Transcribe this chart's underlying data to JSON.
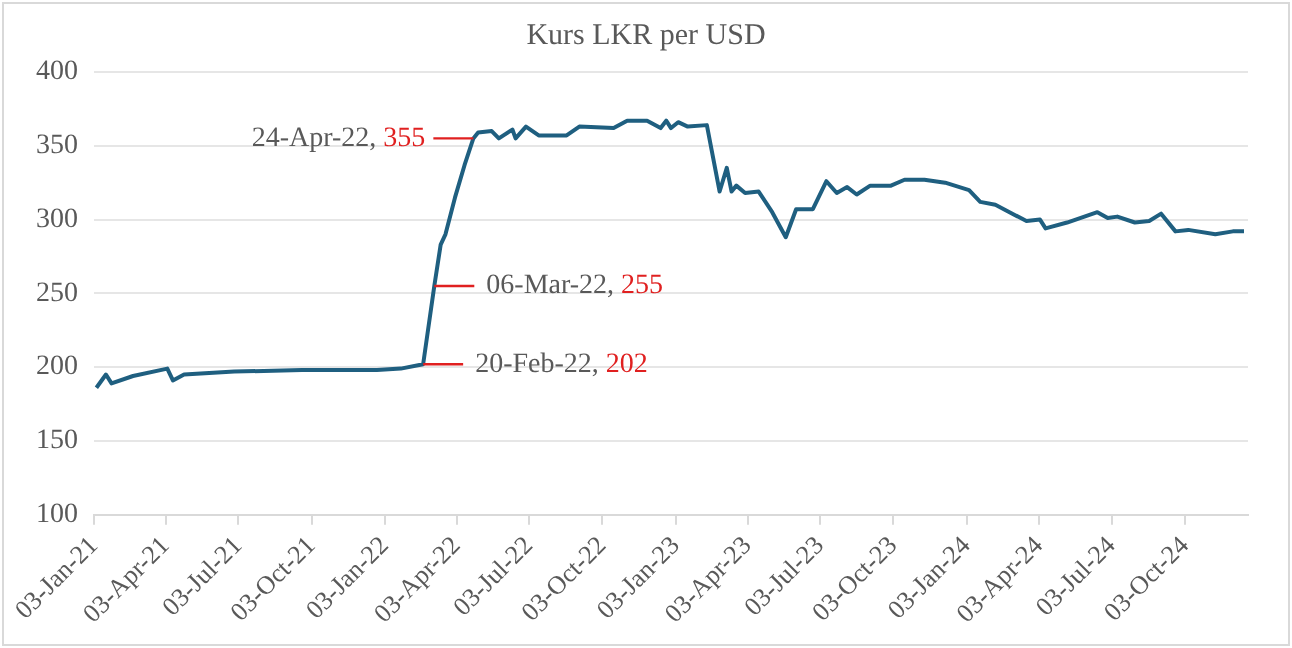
{
  "chart_data": {
    "type": "line",
    "title": "Kurs LKR per USD",
    "color": "#1f5f80",
    "grid": "y",
    "legend": false,
    "marker": "none",
    "line_style": "solid",
    "x": [
      "2021-01-06",
      "2021-01-18",
      "2021-01-25",
      "2021-02-21",
      "2021-04-05",
      "2021-04-12",
      "2021-04-26",
      "2021-06-28",
      "2021-09-21",
      "2021-12-24",
      "2022-01-23",
      "2022-02-20",
      "2022-03-06",
      "2022-03-14",
      "2022-03-20",
      "2022-04-01",
      "2022-04-13",
      "2022-04-24",
      "2022-04-30",
      "2022-05-17",
      "2022-05-26",
      "2022-06-12",
      "2022-06-16",
      "2022-06-29",
      "2022-07-15",
      "2022-08-19",
      "2022-09-04",
      "2022-10-17",
      "2022-11-03",
      "2022-11-28",
      "2022-12-15",
      "2022-12-22",
      "2022-12-28",
      "2023-01-06",
      "2023-01-18",
      "2023-02-11",
      "2023-02-17",
      "2023-02-27",
      "2023-03-08",
      "2023-03-14",
      "2023-03-20",
      "2023-03-31",
      "2023-04-17",
      "2023-05-04",
      "2023-05-21",
      "2023-06-03",
      "2023-06-24",
      "2023-07-11",
      "2023-07-24",
      "2023-08-06",
      "2023-08-18",
      "2023-09-04",
      "2023-09-30",
      "2023-10-17",
      "2023-11-11",
      "2023-12-07",
      "2024-01-06",
      "2024-01-20",
      "2024-02-08",
      "2024-03-18",
      "2024-04-04",
      "2024-04-11",
      "2024-05-08",
      "2024-06-15",
      "2024-06-28",
      "2024-07-10",
      "2024-08-01",
      "2024-08-19",
      "2024-09-03",
      "2024-09-21",
      "2024-10-07",
      "2024-11-10",
      "2024-12-02",
      "2024-12-16"
    ],
    "values": [
      186,
      195,
      189,
      194,
      199,
      191,
      195,
      197,
      198,
      198,
      199,
      202,
      255,
      283,
      290,
      315,
      337,
      355,
      359,
      360,
      355,
      361,
      355,
      363,
      357,
      357,
      363,
      362,
      367,
      367,
      362,
      367,
      362,
      366,
      363,
      364,
      347,
      319,
      335,
      319,
      323,
      318,
      319,
      305,
      288,
      307,
      307,
      326,
      318,
      322,
      317,
      323,
      323,
      327,
      327,
      325,
      320,
      312,
      310,
      299,
      300,
      294,
      298,
      305,
      301,
      302,
      298,
      299,
      304,
      292,
      293,
      290,
      292,
      292
    ],
    "xlim": [
      "2021-01-03",
      "2024-12-21"
    ],
    "xticks": [
      {
        "value": "2021-01-03",
        "label": "03-Jan-21"
      },
      {
        "value": "2021-04-03",
        "label": "03-Apr-21"
      },
      {
        "value": "2021-07-03",
        "label": "03-Jul-21"
      },
      {
        "value": "2021-10-03",
        "label": "03-Oct-21"
      },
      {
        "value": "2022-01-03",
        "label": "03-Jan-22"
      },
      {
        "value": "2022-04-03",
        "label": "03-Apr-22"
      },
      {
        "value": "2022-07-03",
        "label": "03-Jul-22"
      },
      {
        "value": "2022-10-03",
        "label": "03-Oct-22"
      },
      {
        "value": "2023-01-03",
        "label": "03-Jan-23"
      },
      {
        "value": "2023-04-03",
        "label": "03-Apr-23"
      },
      {
        "value": "2023-07-03",
        "label": "03-Jul-23"
      },
      {
        "value": "2023-10-03",
        "label": "03-Oct-23"
      },
      {
        "value": "2024-01-03",
        "label": "03-Jan-24"
      },
      {
        "value": "2024-04-03",
        "label": "03-Apr-24"
      },
      {
        "value": "2024-07-03",
        "label": "03-Jul-24"
      },
      {
        "value": "2024-10-03",
        "label": "03-Oct-24"
      }
    ],
    "ylim": [
      100,
      400
    ],
    "yticks": [
      100,
      150,
      200,
      250,
      300,
      350,
      400
    ],
    "annotations": [
      {
        "text": "24-Apr-22, 355",
        "x": "2022-04-24",
        "y": 355
      },
      {
        "text": "06-Mar-22, 255",
        "x": "2022-03-06",
        "y": 255
      },
      {
        "text": "20-Feb-22, 202",
        "x": "2022-02-20",
        "y": 202
      }
    ]
  }
}
